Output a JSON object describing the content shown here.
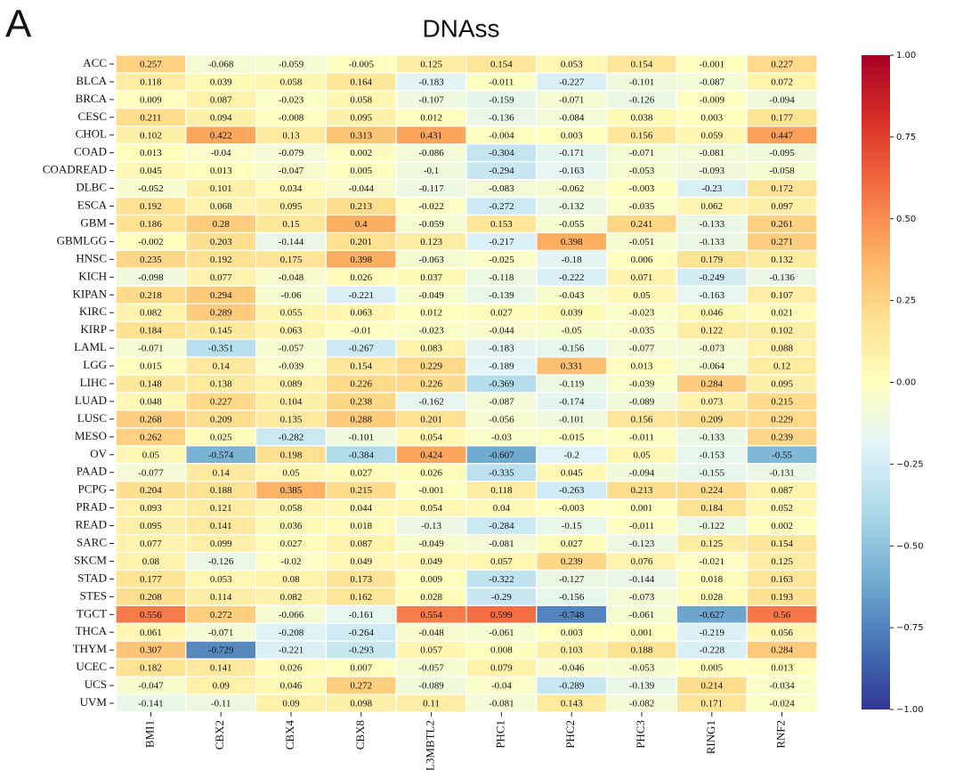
{
  "chart_data": {
    "type": "heatmap",
    "panel_label": "A",
    "title": "DNAss",
    "rows": [
      "ACC",
      "BLCA",
      "BRCA",
      "CESC",
      "CHOL",
      "COAD",
      "COADREAD",
      "DLBC",
      "ESCA",
      "GBM",
      "GBMLGG",
      "HNSC",
      "KICH",
      "KIPAN",
      "KIRC",
      "KIRP",
      "LAML",
      "LGG",
      "LIHC",
      "LUAD",
      "LUSC",
      "MESO",
      "OV",
      "PAAD",
      "PCPG",
      "PRAD",
      "READ",
      "SARC",
      "SKCM",
      "STAD",
      "STES",
      "TGCT",
      "THCA",
      "THYM",
      "UCEC",
      "UCS",
      "UVM"
    ],
    "columns": [
      "BMI1",
      "CBX2",
      "CBX4",
      "CBX8",
      "L3MBTL2",
      "PHC1",
      "PHC2",
      "PHC3",
      "RING1",
      "RNF2"
    ],
    "values": [
      [
        0.257,
        -0.068,
        -0.059,
        -0.005,
        0.125,
        0.154,
        0.053,
        0.154,
        -0.001,
        0.227
      ],
      [
        0.118,
        0.039,
        0.058,
        0.164,
        -0.183,
        -0.011,
        -0.227,
        -0.101,
        -0.087,
        0.072
      ],
      [
        0.009,
        0.087,
        -0.023,
        0.058,
        -0.107,
        -0.159,
        -0.071,
        -0.126,
        -0.009,
        -0.094
      ],
      [
        0.211,
        0.094,
        -0.008,
        0.095,
        0.012,
        -0.136,
        -0.084,
        0.038,
        0.003,
        0.177
      ],
      [
        0.102,
        0.422,
        0.13,
        0.313,
        0.431,
        -0.004,
        0.003,
        0.156,
        0.059,
        0.447
      ],
      [
        0.013,
        -0.04,
        -0.079,
        0.002,
        -0.086,
        -0.304,
        -0.171,
        -0.071,
        -0.081,
        -0.095
      ],
      [
        0.045,
        0.013,
        -0.047,
        0.005,
        -0.1,
        -0.294,
        -0.163,
        -0.053,
        -0.093,
        -0.058
      ],
      [
        -0.052,
        0.101,
        0.034,
        -0.044,
        -0.117,
        -0.083,
        -0.062,
        -0.003,
        -0.23,
        0.172
      ],
      [
        0.192,
        0.068,
        0.095,
        0.213,
        -0.022,
        -0.272,
        -0.132,
        -0.035,
        0.062,
        0.097
      ],
      [
        0.186,
        0.28,
        0.15,
        0.4,
        -0.059,
        0.153,
        -0.055,
        0.241,
        -0.133,
        0.261
      ],
      [
        -0.002,
        0.203,
        -0.144,
        0.201,
        0.123,
        -0.217,
        0.398,
        -0.051,
        -0.133,
        0.271
      ],
      [
        0.235,
        0.192,
        0.175,
        0.398,
        -0.063,
        -0.025,
        -0.18,
        0.006,
        0.179,
        0.132
      ],
      [
        -0.098,
        0.077,
        -0.048,
        0.026,
        0.037,
        -0.118,
        -0.222,
        0.071,
        -0.249,
        -0.136
      ],
      [
        0.218,
        0.294,
        -0.06,
        -0.221,
        -0.049,
        -0.139,
        -0.043,
        0.05,
        -0.163,
        0.107
      ],
      [
        0.082,
        0.289,
        0.055,
        0.063,
        0.012,
        0.027,
        0.039,
        -0.023,
        0.046,
        0.021
      ],
      [
        0.184,
        0.145,
        0.063,
        -0.01,
        -0.023,
        -0.044,
        -0.05,
        -0.035,
        0.122,
        0.102
      ],
      [
        -0.071,
        -0.351,
        -0.057,
        -0.267,
        0.083,
        -0.183,
        -0.156,
        -0.077,
        -0.073,
        0.088
      ],
      [
        0.015,
        0.14,
        -0.039,
        0.154,
        0.229,
        -0.189,
        0.331,
        0.013,
        -0.064,
        0.12
      ],
      [
        0.148,
        0.138,
        0.089,
        0.226,
        0.226,
        -0.369,
        -0.119,
        -0.039,
        0.284,
        0.095
      ],
      [
        0.048,
        0.227,
        0.104,
        0.238,
        -0.162,
        -0.087,
        -0.174,
        -0.089,
        0.073,
        0.215
      ],
      [
        0.268,
        0.209,
        0.135,
        0.288,
        0.201,
        -0.056,
        -0.101,
        0.156,
        0.209,
        0.229
      ],
      [
        0.262,
        0.025,
        -0.282,
        -0.101,
        0.054,
        -0.03,
        -0.015,
        -0.011,
        -0.133,
        0.239
      ],
      [
        0.05,
        -0.574,
        0.198,
        -0.384,
        0.424,
        -0.607,
        -0.2,
        0.05,
        -0.153,
        -0.55
      ],
      [
        -0.077,
        0.14,
        0.05,
        0.027,
        0.026,
        -0.335,
        0.045,
        -0.094,
        -0.155,
        -0.131
      ],
      [
        0.204,
        0.188,
        0.385,
        0.215,
        -0.001,
        0.118,
        -0.263,
        0.213,
        0.224,
        0.087
      ],
      [
        0.093,
        0.121,
        0.058,
        0.044,
        0.054,
        0.04,
        -0.003,
        0.001,
        0.184,
        0.052
      ],
      [
        0.095,
        0.141,
        0.036,
        0.018,
        -0.13,
        -0.284,
        -0.15,
        -0.011,
        -0.122,
        0.002
      ],
      [
        0.077,
        0.099,
        0.027,
        0.087,
        -0.049,
        -0.081,
        0.027,
        -0.123,
        0.125,
        0.154
      ],
      [
        0.08,
        -0.126,
        -0.02,
        0.049,
        0.049,
        0.057,
        0.239,
        0.076,
        -0.021,
        0.125
      ],
      [
        0.177,
        0.053,
        0.08,
        0.173,
        0.009,
        -0.322,
        -0.127,
        -0.144,
        0.018,
        0.163
      ],
      [
        0.208,
        0.114,
        0.082,
        0.162,
        0.028,
        -0.29,
        -0.156,
        -0.073,
        0.028,
        0.193
      ],
      [
        0.556,
        0.272,
        -0.066,
        -0.161,
        0.554,
        0.599,
        -0.748,
        -0.061,
        -0.627,
        0.56
      ],
      [
        0.061,
        -0.071,
        -0.208,
        -0.264,
        -0.048,
        -0.061,
        0.003,
        0.001,
        -0.219,
        0.056
      ],
      [
        0.307,
        -0.729,
        -0.221,
        -0.293,
        0.057,
        0.008,
        0.103,
        0.188,
        -0.228,
        0.284
      ],
      [
        0.182,
        0.141,
        0.026,
        0.007,
        -0.057,
        0.079,
        -0.046,
        -0.053,
        0.005,
        0.013
      ],
      [
        -0.047,
        0.09,
        0.046,
        0.272,
        -0.089,
        -0.04,
        -0.289,
        -0.139,
        0.214,
        -0.034
      ],
      [
        -0.141,
        -0.11,
        0.09,
        0.098,
        0.11,
        -0.081,
        0.143,
        -0.082,
        0.171,
        -0.024
      ]
    ],
    "zlim": [
      -1,
      1
    ],
    "zticks": [
      {
        "value": 1,
        "label": "1.00"
      },
      {
        "value": 0.75,
        "label": "0.75"
      },
      {
        "value": 0.5,
        "label": "0.50"
      },
      {
        "value": 0.25,
        "label": "0.25"
      },
      {
        "value": 0,
        "label": "0.00"
      },
      {
        "value": -0.25,
        "label": "−0.25"
      },
      {
        "value": -0.5,
        "label": "−0.50"
      },
      {
        "value": -0.75,
        "label": "−0.75"
      },
      {
        "value": -1,
        "label": "−1.00"
      }
    ],
    "colormap": [
      "#313695",
      "#4575b4",
      "#74add1",
      "#abd9e9",
      "#e0f3f8",
      "#ffffbf",
      "#fee090",
      "#fdae61",
      "#f46d43",
      "#d73027",
      "#a50026"
    ]
  }
}
